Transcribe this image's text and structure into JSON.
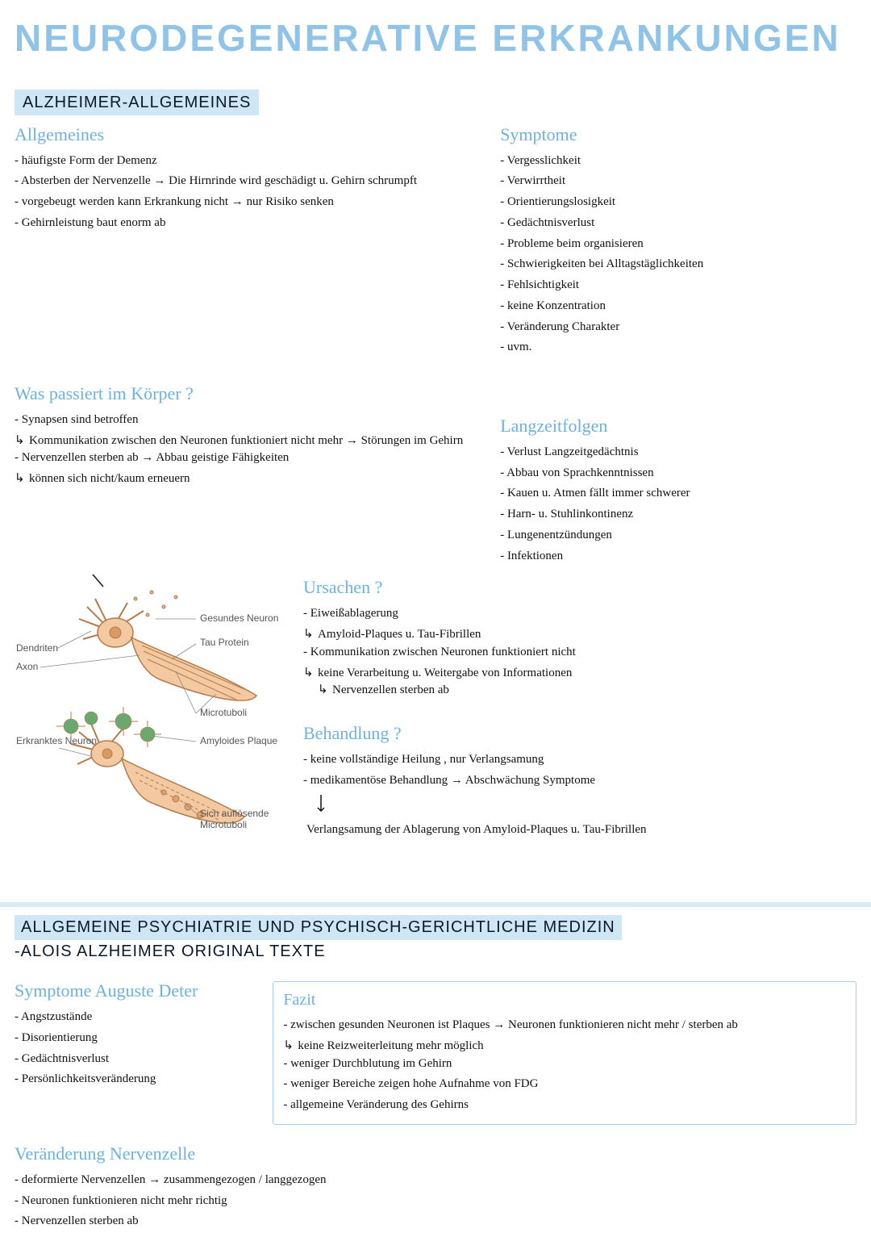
{
  "colors": {
    "title": "#8fc3e8",
    "bar_bg": "#cfe6f5",
    "bar_text": "#0a1a2a",
    "subhead": "#6db2de",
    "body_text": "#111111",
    "box_border": "#a7cde6",
    "divider": "#d7eaf6",
    "neuron_stroke": "#b57b4b",
    "neuron_fill": "#f3c9a1",
    "plaque_fill": "#6aa86f",
    "background": "#ffffff"
  },
  "title": "NEURODEGENERATIVE ERKRANKUNGEN",
  "section1": {
    "bar": "ALZHEIMER-ALLGEMEINES",
    "allgemeines": {
      "head": "Allgemeines",
      "items": [
        "häufigste Form der Demenz",
        "Absterben der Nervenzelle → Die Hirnrinde wird geschädigt u. Gehirn schrumpft",
        "vorgebeugt werden kann Erkrankung nicht → nur Risiko senken",
        "Gehirnleistung baut enorm ab"
      ]
    },
    "symptome": {
      "head": "Symptome",
      "items": [
        "Vergesslichkeit",
        "Verwirrtheit",
        "Orientierungslosigkeit",
        "Gedächtnisverlust",
        "Probleme beim organisieren",
        "Schwierigkeiten bei Alltagstäglichkeiten",
        "Fehlsichtigkeit",
        "keine Konzentration",
        "Veränderung Charakter",
        "uvm."
      ]
    },
    "was_passiert": {
      "head": "Was passiert im Körper ?",
      "items": [
        "Synapsen sind betroffen",
        "Kommunikation zwischen den Neuronen funktioniert nicht mehr → Störungen im Gehirn",
        "Nervenzellen sterben ab → Abbau geistige Fähigkeiten",
        "können sich nicht/kaum erneuern"
      ]
    },
    "langzeit": {
      "head": "Langzeitfolgen",
      "items": [
        "Verlust Langzeitgedächtnis",
        "Abbau von Sprachkenntnissen",
        "Kauen u. Atmen fällt immer schwerer",
        "Harn- u. Stuhlinkontinenz",
        "Lungenentzündungen",
        "Infektionen"
      ]
    },
    "ursachen": {
      "head": "Ursachen ?",
      "items": [
        "Eiweißablagerung",
        "Amyloid-Plaques u. Tau-Fibrillen",
        "Kommunikation zwischen Neuronen funktioniert nicht",
        "keine Verarbeitung u. Weitergabe von Informationen",
        "Nervenzellen sterben ab"
      ]
    },
    "behandlung": {
      "head": "Behandlung ?",
      "items": [
        "keine vollständige Heilung , nur Verlangsamung",
        "medikamentöse Behandlung → Abschwächung Symptome",
        "Verlangsamung der Ablagerung von Amyloid-Plaques u. Tau-Fibrillen"
      ]
    },
    "diagram_labels": {
      "gesundes_neuron": "Gesundes Neuron",
      "dendriten": "Dendriten",
      "axon": "Axon",
      "tau_protein": "Tau Protein",
      "microtuboli": "Microtuboli",
      "erkranktes_neuron": "Erkranktes Neuron",
      "amyloides_plaque": "Amyloides Plaque",
      "sich_aufloesende": "Sich auflösende Microtuboli"
    }
  },
  "section2": {
    "bar_line1": "ALLGEMEINE PSYCHIATRIE UND PSYCHISCH-GERICHTLICHE MEDIZIN",
    "bar_line2": "-ALOIS ALZHEIMER ORIGINAL TEXTE",
    "symptome_deter": {
      "head": "Symptome Auguste Deter",
      "items": [
        "Angstzustände",
        "Disorientierung",
        "Gedächtnisverlust",
        "Persönlichkeitsveränderung"
      ]
    },
    "fazit": {
      "head": "Fazit",
      "items": [
        "zwischen gesunden Neuronen ist Plaques → Neuronen funktionieren nicht mehr / sterben ab",
        "keine Reizweiterleitung mehr möglich",
        "weniger Durchblutung im Gehirn",
        "weniger Bereiche zeigen hohe Aufnahme von FDG",
        "allgemeine Veränderung des Gehirns"
      ]
    },
    "veraenderung": {
      "head": "Veränderung Nervenzelle",
      "items": [
        "deformierte Nervenzellen → zusammengezogen / langgezogen",
        "Neuronen funktionieren nicht mehr richtig",
        "Nervenzellen sterben ab"
      ]
    }
  }
}
